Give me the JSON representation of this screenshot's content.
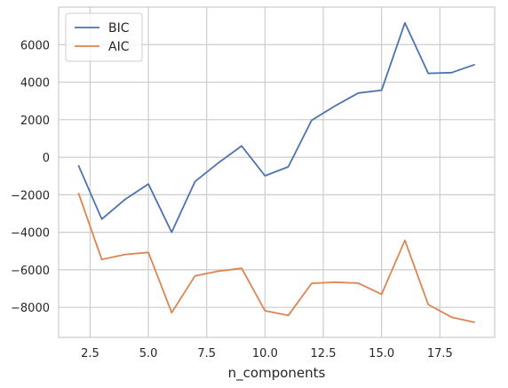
{
  "chart_data": {
    "type": "line",
    "xlabel": "n_components",
    "ylabel": "",
    "xlim": [
      1.15,
      19.85
    ],
    "ylim": [
      -9600,
      8000
    ],
    "xticks": [
      2.5,
      5.0,
      7.5,
      10.0,
      12.5,
      15.0,
      17.5
    ],
    "xtick_labels": [
      "2.5",
      "5.0",
      "7.5",
      "10.0",
      "12.5",
      "15.0",
      "17.5"
    ],
    "yticks": [
      -8000,
      -6000,
      -4000,
      -2000,
      0,
      2000,
      4000,
      6000
    ],
    "ytick_labels": [
      "−8000",
      "−6000",
      "−4000",
      "−2000",
      "0",
      "2000",
      "4000",
      "6000"
    ],
    "grid": true,
    "legend_position": "upper-left",
    "x": [
      2,
      3,
      4,
      5,
      6,
      7,
      8,
      9,
      10,
      11,
      12,
      13,
      14,
      15,
      16,
      17,
      18,
      19
    ],
    "series": [
      {
        "name": "BIC",
        "color": "#4c72b0",
        "values": [
          -430,
          -3300,
          -2250,
          -1430,
          -4000,
          -1290,
          -300,
          600,
          -990,
          -510,
          1970,
          2730,
          3420,
          3570,
          7160,
          4470,
          4510,
          4940
        ]
      },
      {
        "name": "AIC",
        "color": "#dd8452",
        "values": [
          -1900,
          -5450,
          -5180,
          -5070,
          -8280,
          -6320,
          -6070,
          -5920,
          -8180,
          -8430,
          -6720,
          -6660,
          -6710,
          -7300,
          -4430,
          -7850,
          -8520,
          -8800
        ]
      }
    ]
  }
}
